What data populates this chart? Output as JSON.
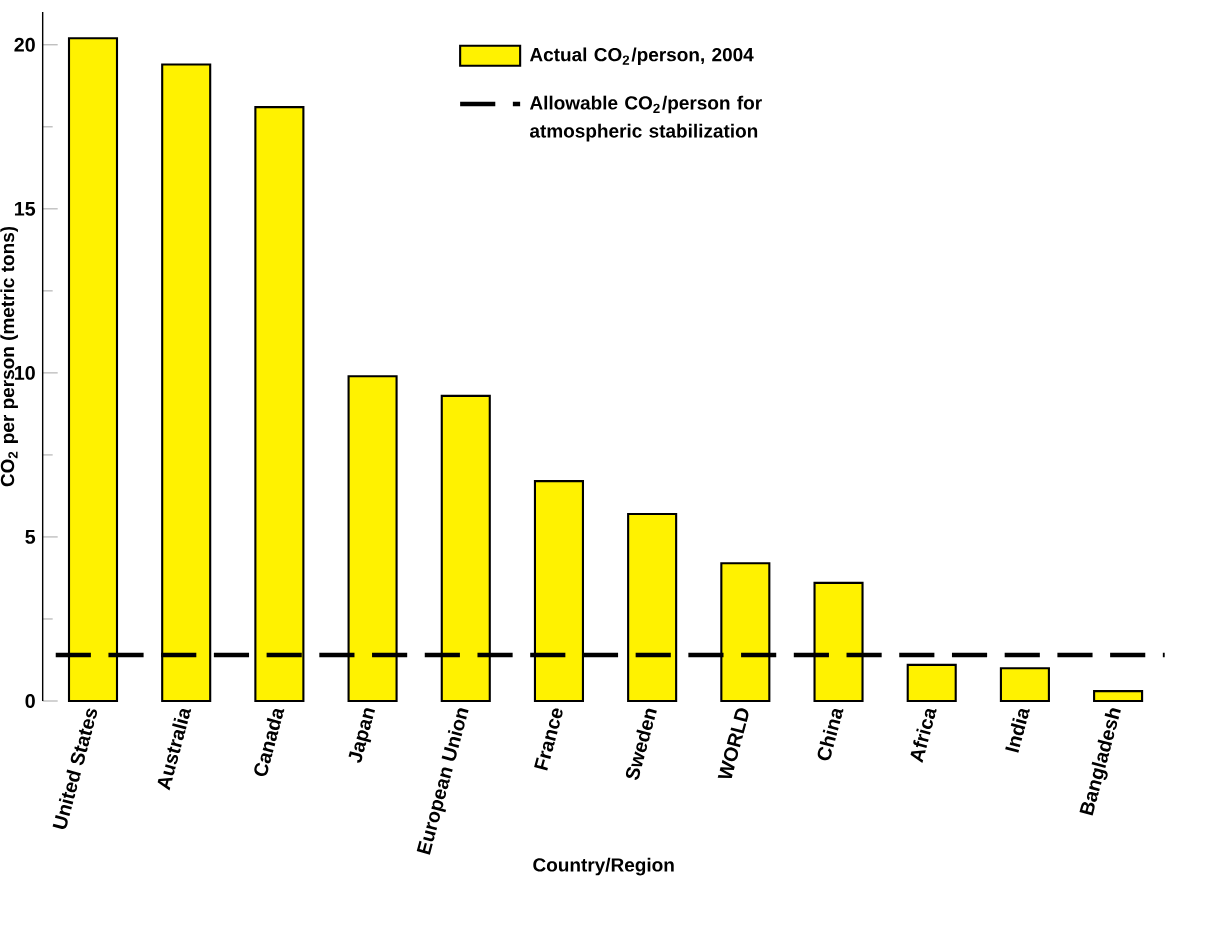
{
  "chart_data": {
    "type": "bar",
    "xlabel": "Country/Region",
    "ylabel": "CO$_{2}$ per person (metric tons)",
    "categories": [
      "United States",
      "Australia",
      "Canada",
      "Japan",
      "European Union",
      "France",
      "Sweden",
      "WORLD",
      "China",
      "Africa",
      "India",
      "Bangladesh"
    ],
    "series": [
      {
        "name": "Actual CO$_{2}$/person, 2004",
        "color": "#fff200",
        "values": [
          20.2,
          19.4,
          18.1,
          9.9,
          9.3,
          6.7,
          5.7,
          4.2,
          3.6,
          1.1,
          1.0,
          0.3
        ]
      }
    ],
    "ylim": [
      0,
      21
    ],
    "yticks": [
      0,
      5,
      10,
      15,
      20
    ],
    "ref_lines": [
      {
        "axis": "y",
        "value": 1.4,
        "label": "Allowable CO$_{2}$/person for atmospheric stabilization",
        "line_style": "dashed",
        "color": "#000000"
      }
    ],
    "legend": "top right",
    "grid": false
  }
}
